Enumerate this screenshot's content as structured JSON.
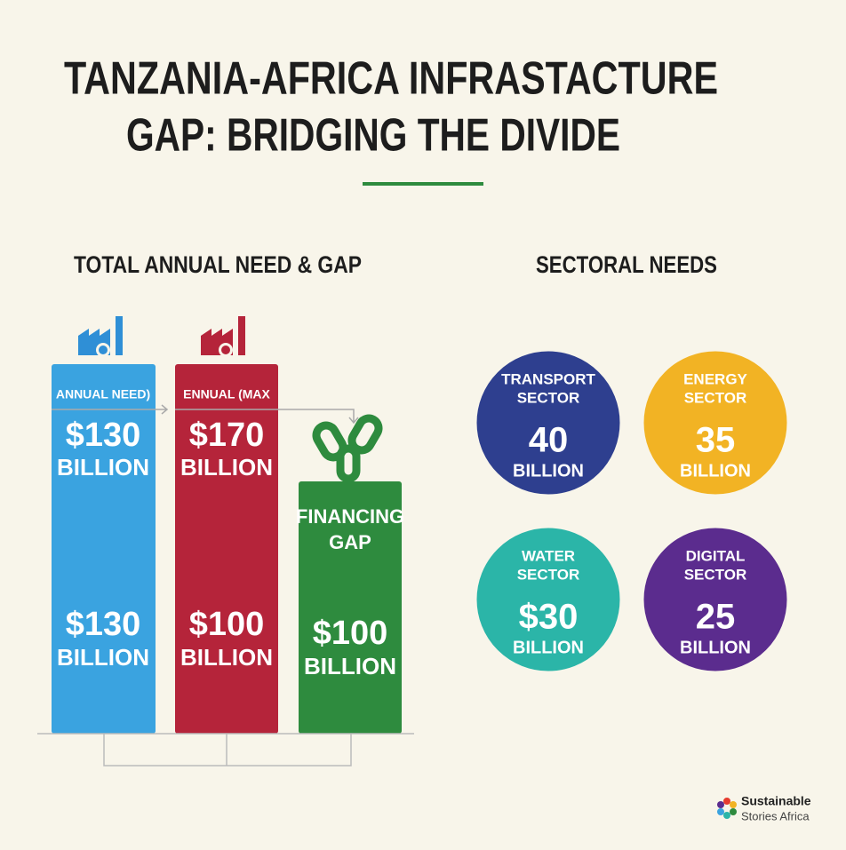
{
  "header": {
    "title": [
      "TANZANIA-AFRICA INFRASTACTURE",
      "GAP: BRIDGING THE DIVIDE"
    ]
  },
  "left": {
    "heading": "TOTAL ANNUAL NEED & GAP",
    "columns": [
      {
        "label": [
          "ANNUAL NEED)"
        ],
        "top": [
          "$130",
          "BILLION"
        ],
        "bottom": [
          "$130",
          "BILLION"
        ]
      },
      {
        "label": [
          "ENNUAL (MAX"
        ],
        "top": [
          "$170",
          "BILLION"
        ],
        "bottom": [
          "$100",
          "BILLION"
        ]
      },
      {
        "label": [
          "FINANCING",
          "GAP"
        ],
        "bottom": [
          "$100",
          "BILLION"
        ]
      }
    ]
  },
  "right": {
    "heading": "SECTORAL NEEDS",
    "sectors": [
      {
        "name": [
          "TRANSPORT",
          "SECTOR"
        ],
        "amount": "40",
        "unit": "BILLION"
      },
      {
        "name": [
          "ENERGY",
          "SECTOR"
        ],
        "amount": "35",
        "unit": "BILLION"
      },
      {
        "name": [
          "WATER",
          "SECTOR"
        ],
        "amount": "$30",
        "unit": "BILLION"
      },
      {
        "name": [
          "DIGITAL",
          "SECTOR"
        ],
        "amount": "25",
        "unit": "BILLION"
      }
    ]
  },
  "logo": {
    "lines": [
      "Sustainable",
      "Stories Africa"
    ]
  }
}
